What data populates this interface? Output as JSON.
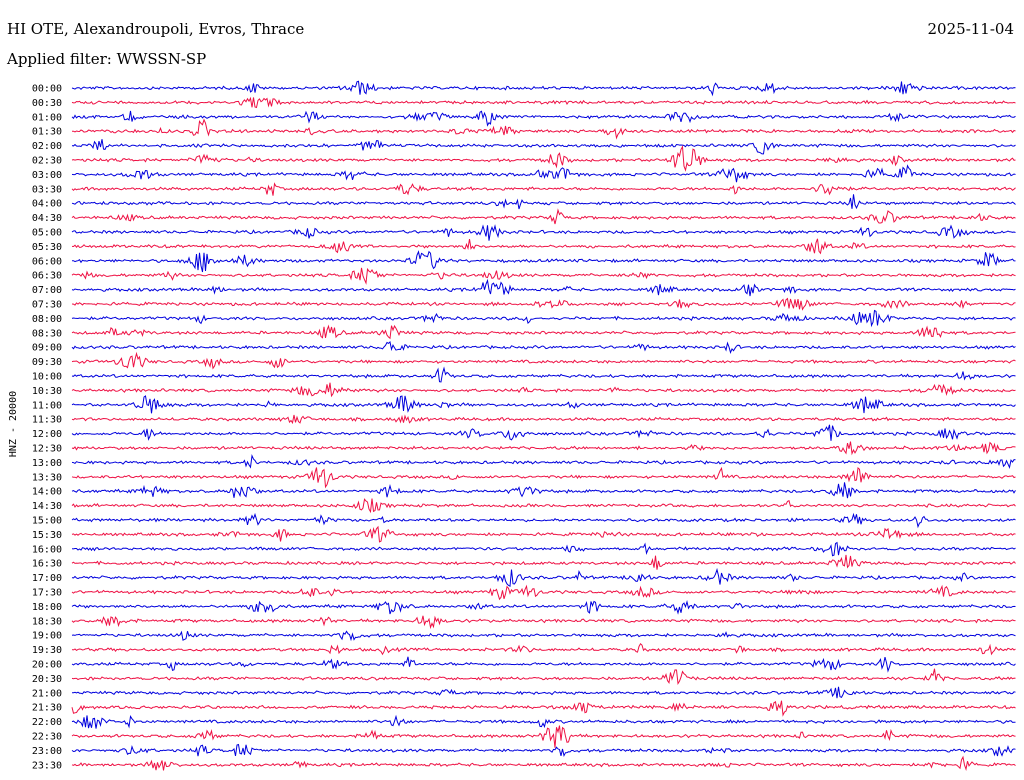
{
  "header": {
    "station": "HI OTE, Alexandroupoli, Evros, Thrace",
    "filter": "Applied filter: WWSSN-SP",
    "date": "2025-11-04"
  },
  "chart_data": {
    "type": "line",
    "ylabel": "HNZ - 20000",
    "rows": [
      "00:00",
      "00:30",
      "01:00",
      "01:30",
      "02:00",
      "02:30",
      "03:00",
      "03:30",
      "04:00",
      "04:30",
      "05:00",
      "05:30",
      "06:00",
      "06:30",
      "07:00",
      "07:30",
      "08:00",
      "08:30",
      "09:00",
      "09:30",
      "10:00",
      "10:30",
      "11:00",
      "11:30",
      "12:00",
      "12:30",
      "13:00",
      "13:30",
      "14:00",
      "14:30",
      "15:00",
      "15:30",
      "16:00",
      "16:30",
      "17:00",
      "17:30",
      "18:00",
      "18:30",
      "19:00",
      "19:30",
      "20:00",
      "20:30",
      "21:00",
      "21:30",
      "22:00",
      "22:30",
      "23:00",
      "23:30"
    ],
    "series_colors": [
      "#0000dd",
      "#ee1144"
    ],
    "grid": false
  }
}
